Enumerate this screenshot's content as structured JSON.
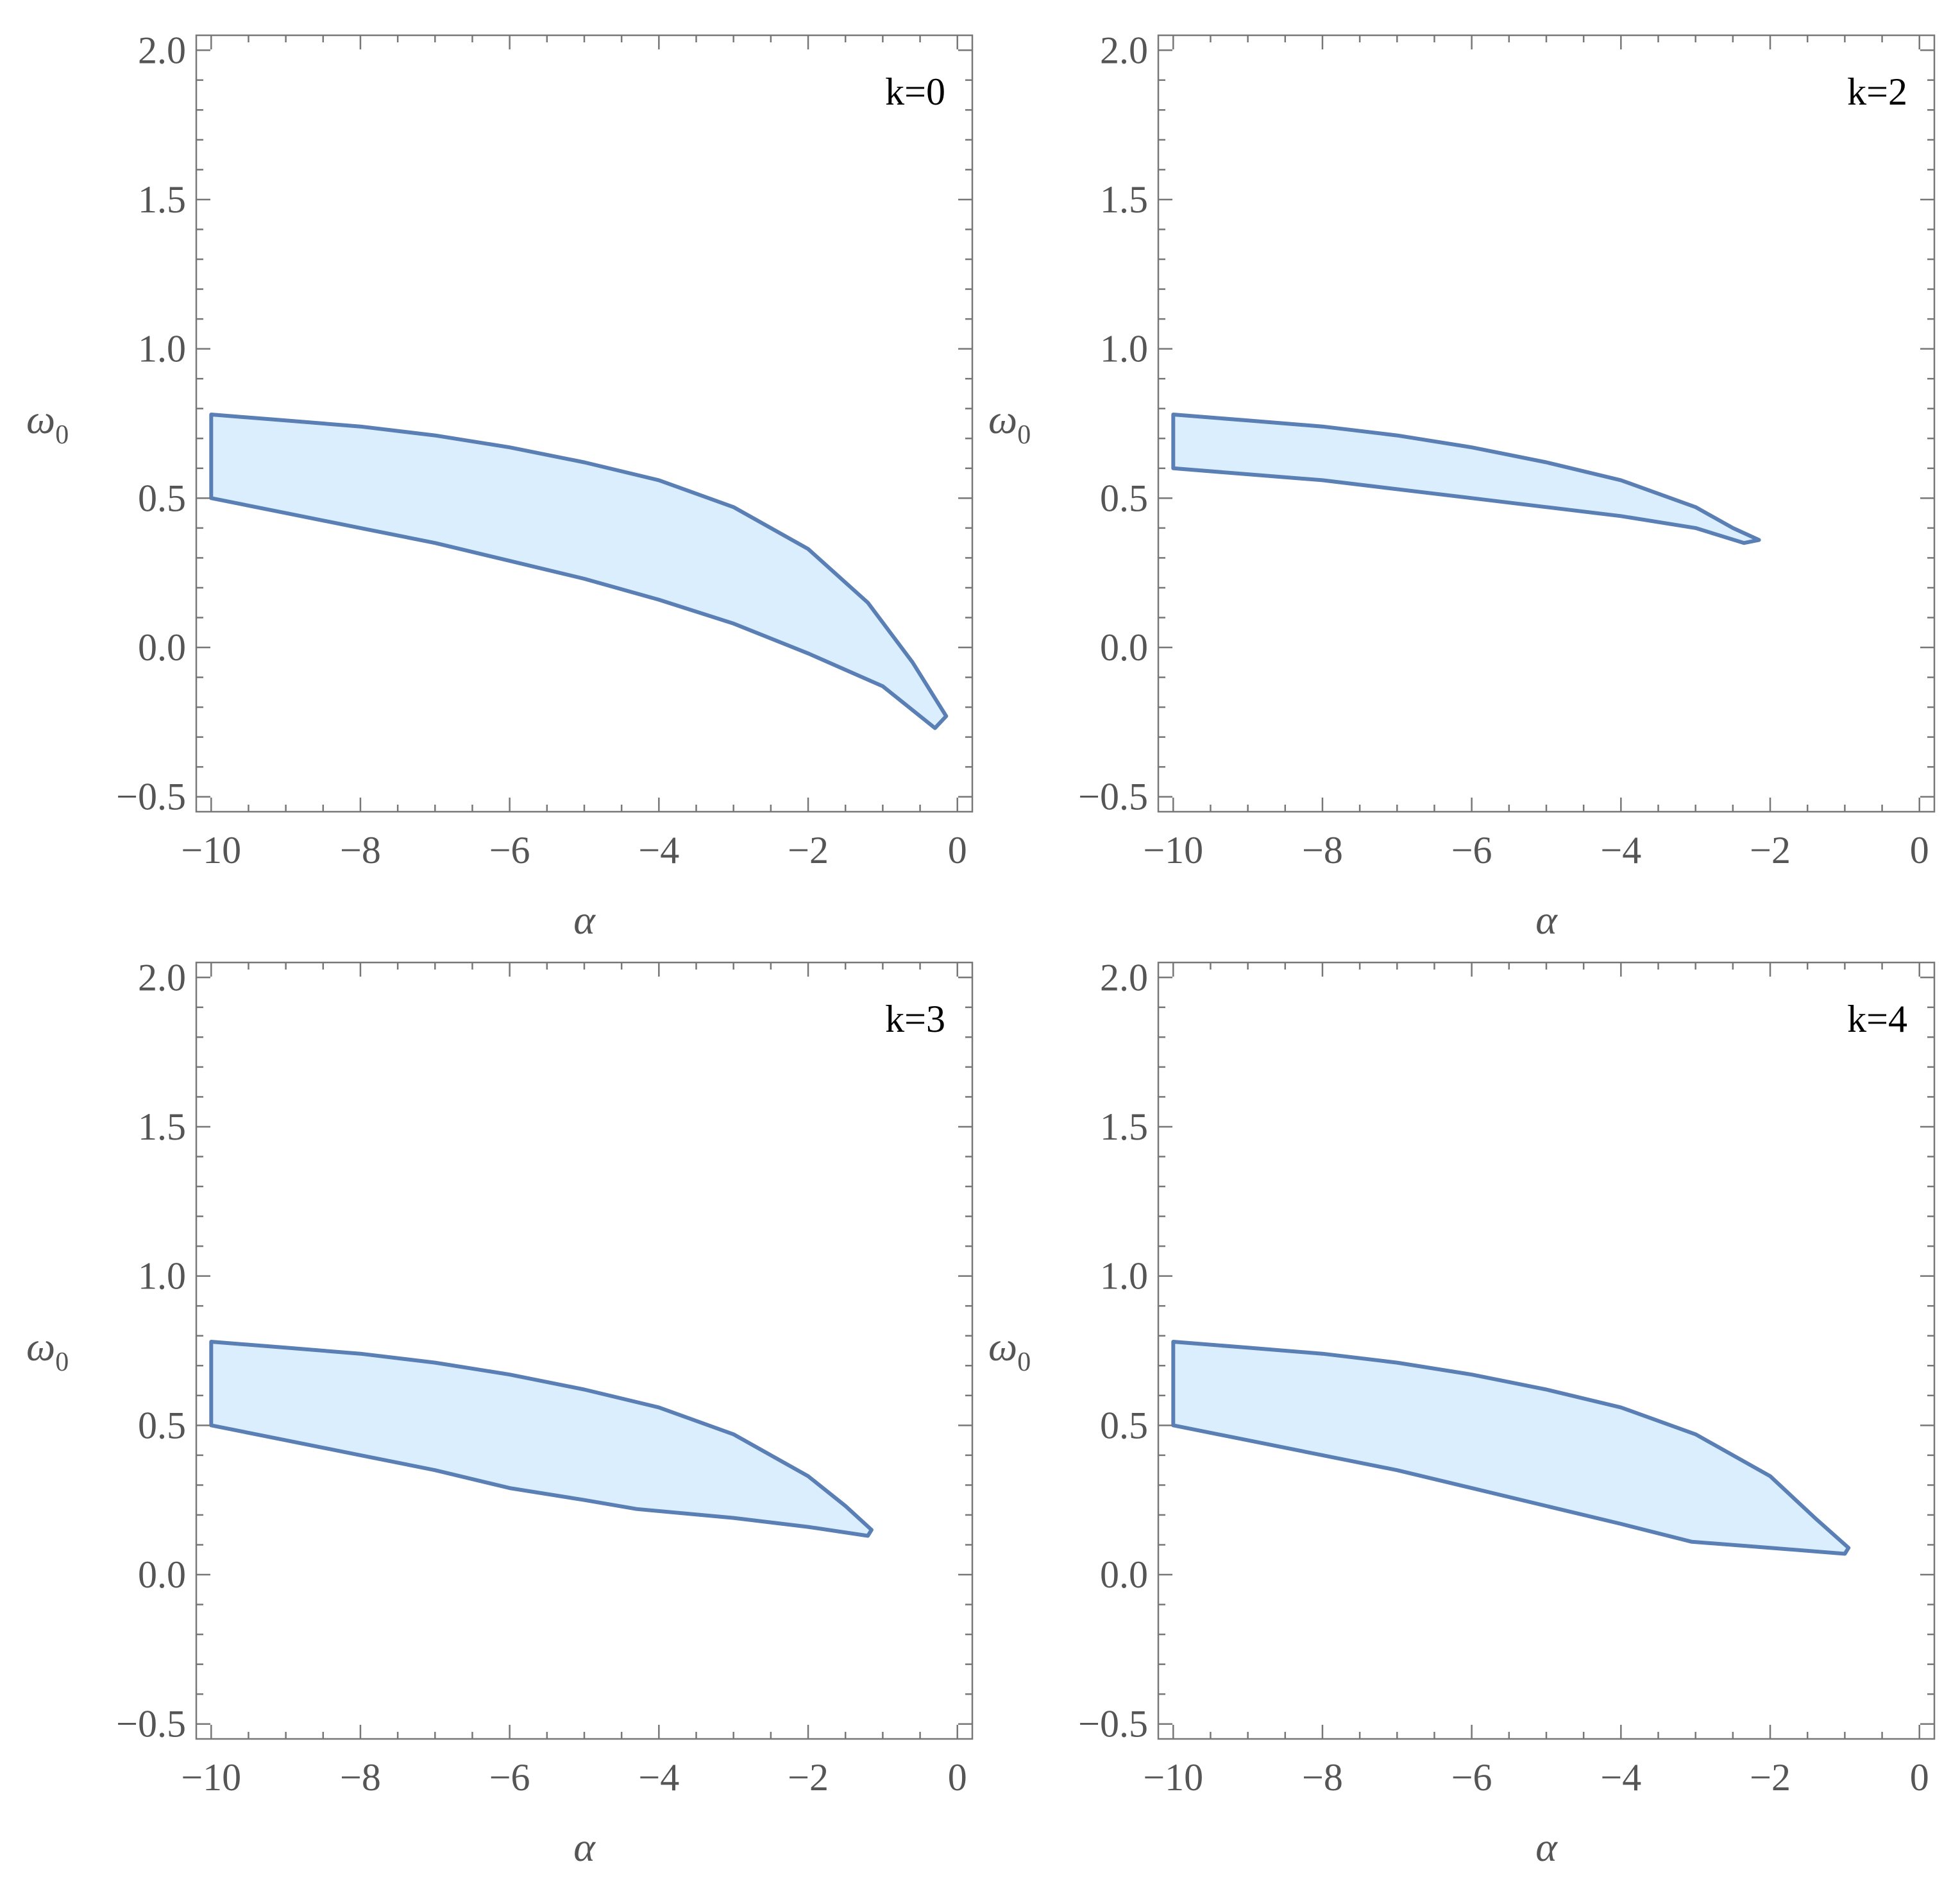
{
  "chart_data": [
    {
      "type": "area",
      "panel_label": "k=0",
      "xlabel": "α",
      "ylabel": "ω",
      "ylabel_sub": "0",
      "xlim": [
        -10.2,
        0.2
      ],
      "ylim": [
        -0.55,
        2.05
      ],
      "xticks": [
        -10,
        -8,
        -6,
        -4,
        -2,
        0
      ],
      "xtick_labels": [
        "−10",
        "−8",
        "−6",
        "−4",
        "−2",
        "0"
      ],
      "yticks": [
        -0.5,
        0.0,
        0.5,
        1.0,
        1.5,
        2.0
      ],
      "ytick_labels": [
        "−0.5",
        "0.0",
        "0.5",
        "1.0",
        "1.5",
        "2.0"
      ],
      "fill_color": "#dbeefe",
      "edge_color": "#5a7fb5",
      "region": {
        "upper": [
          [
            -10,
            0.78
          ],
          [
            -9,
            0.76
          ],
          [
            -8,
            0.74
          ],
          [
            -7,
            0.71
          ],
          [
            -6,
            0.67
          ],
          [
            -5,
            0.62
          ],
          [
            -4,
            0.56
          ],
          [
            -3,
            0.47
          ],
          [
            -2,
            0.33
          ],
          [
            -1.2,
            0.15
          ],
          [
            -0.6,
            -0.05
          ],
          [
            -0.15,
            -0.23
          ]
        ],
        "lower": [
          [
            -10,
            0.5
          ],
          [
            -9,
            0.45
          ],
          [
            -8,
            0.4
          ],
          [
            -7,
            0.35
          ],
          [
            -6,
            0.29
          ],
          [
            -5,
            0.23
          ],
          [
            -4,
            0.16
          ],
          [
            -3,
            0.08
          ],
          [
            -2,
            -0.02
          ],
          [
            -1,
            -0.13
          ],
          [
            -0.3,
            -0.27
          ]
        ]
      }
    },
    {
      "type": "area",
      "panel_label": "k=2",
      "xlabel": "α",
      "ylabel": "ω",
      "ylabel_sub": "0",
      "xlim": [
        -10.2,
        0.2
      ],
      "ylim": [
        -0.55,
        2.05
      ],
      "xticks": [
        -10,
        -8,
        -6,
        -4,
        -2,
        0
      ],
      "xtick_labels": [
        "−10",
        "−8",
        "−6",
        "−4",
        "−2",
        "0"
      ],
      "yticks": [
        -0.5,
        0.0,
        0.5,
        1.0,
        1.5,
        2.0
      ],
      "ytick_labels": [
        "−0.5",
        "0.0",
        "0.5",
        "1.0",
        "1.5",
        "2.0"
      ],
      "fill_color": "#dbeefe",
      "edge_color": "#5a7fb5",
      "region": {
        "upper": [
          [
            -10,
            0.78
          ],
          [
            -9,
            0.76
          ],
          [
            -8,
            0.74
          ],
          [
            -7,
            0.71
          ],
          [
            -6,
            0.67
          ],
          [
            -5,
            0.62
          ],
          [
            -4,
            0.56
          ],
          [
            -3,
            0.47
          ],
          [
            -2.5,
            0.4
          ],
          [
            -2.15,
            0.36
          ]
        ],
        "lower": [
          [
            -10,
            0.6
          ],
          [
            -9,
            0.58
          ],
          [
            -8,
            0.56
          ],
          [
            -7,
            0.53
          ],
          [
            -6,
            0.5
          ],
          [
            -5,
            0.47
          ],
          [
            -4,
            0.44
          ],
          [
            -3,
            0.4
          ],
          [
            -2.35,
            0.35
          ]
        ]
      }
    },
    {
      "type": "area",
      "panel_label": "k=3",
      "xlabel": "α",
      "ylabel": "ω",
      "ylabel_sub": "0",
      "xlim": [
        -10.2,
        0.2
      ],
      "ylim": [
        -0.55,
        2.05
      ],
      "xticks": [
        -10,
        -8,
        -6,
        -4,
        -2,
        0
      ],
      "xtick_labels": [
        "−10",
        "−8",
        "−6",
        "−4",
        "−2",
        "0"
      ],
      "yticks": [
        -0.5,
        0.0,
        0.5,
        1.0,
        1.5,
        2.0
      ],
      "ytick_labels": [
        "−0.5",
        "0.0",
        "0.5",
        "1.0",
        "1.5",
        "2.0"
      ],
      "fill_color": "#dbeefe",
      "edge_color": "#5a7fb5",
      "region": {
        "upper": [
          [
            -10,
            0.78
          ],
          [
            -9,
            0.76
          ],
          [
            -8,
            0.74
          ],
          [
            -7,
            0.71
          ],
          [
            -6,
            0.67
          ],
          [
            -5,
            0.62
          ],
          [
            -4,
            0.56
          ],
          [
            -3,
            0.47
          ],
          [
            -2,
            0.33
          ],
          [
            -1.5,
            0.23
          ],
          [
            -1.15,
            0.15
          ]
        ],
        "lower": [
          [
            -10,
            0.5
          ],
          [
            -9,
            0.45
          ],
          [
            -8,
            0.4
          ],
          [
            -7,
            0.35
          ],
          [
            -6,
            0.29
          ],
          [
            -5,
            0.25
          ],
          [
            -4.3,
            0.22
          ],
          [
            -3,
            0.19
          ],
          [
            -2,
            0.16
          ],
          [
            -1.2,
            0.13
          ]
        ]
      }
    },
    {
      "type": "area",
      "panel_label": "k=4",
      "xlabel": "α",
      "ylabel": "ω",
      "ylabel_sub": "0",
      "xlim": [
        -10.2,
        0.2
      ],
      "ylim": [
        -0.55,
        2.05
      ],
      "xticks": [
        -10,
        -8,
        -6,
        -4,
        -2,
        0
      ],
      "xtick_labels": [
        "−10",
        "−8",
        "−6",
        "−4",
        "−2",
        "0"
      ],
      "yticks": [
        -0.5,
        0.0,
        0.5,
        1.0,
        1.5,
        2.0
      ],
      "ytick_labels": [
        "−0.5",
        "0.0",
        "0.5",
        "1.0",
        "1.5",
        "2.0"
      ],
      "fill_color": "#dbeefe",
      "edge_color": "#5a7fb5",
      "region": {
        "upper": [
          [
            -10,
            0.78
          ],
          [
            -9,
            0.76
          ],
          [
            -8,
            0.74
          ],
          [
            -7,
            0.71
          ],
          [
            -6,
            0.67
          ],
          [
            -5,
            0.62
          ],
          [
            -4,
            0.56
          ],
          [
            -3,
            0.47
          ],
          [
            -2,
            0.33
          ],
          [
            -1.4,
            0.19
          ],
          [
            -0.95,
            0.09
          ]
        ],
        "lower": [
          [
            -10,
            0.5
          ],
          [
            -9,
            0.45
          ],
          [
            -8,
            0.4
          ],
          [
            -7,
            0.35
          ],
          [
            -6,
            0.29
          ],
          [
            -5,
            0.23
          ],
          [
            -4,
            0.17
          ],
          [
            -3.05,
            0.11
          ],
          [
            -2,
            0.09
          ],
          [
            -1,
            0.07
          ]
        ]
      }
    }
  ]
}
